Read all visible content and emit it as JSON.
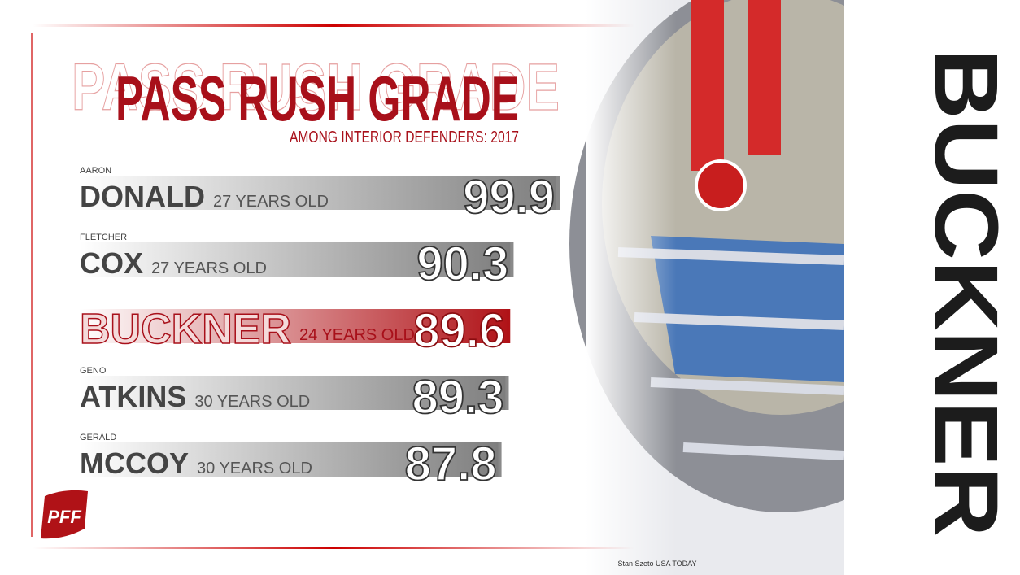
{
  "chart_data": {
    "type": "bar",
    "title": "PASS RUSH GRADE",
    "subtitle": "AMONG INTERIOR DEFENDERS: 2017",
    "first_names": [
      "AARON",
      "FLETCHER",
      null,
      "GENO",
      "GERALD"
    ],
    "categories": [
      "DONALD",
      "COX",
      "BUCKNER",
      "ATKINS",
      "MCCOY"
    ],
    "ages": [
      "27 YEARS OLD",
      "27 YEARS OLD",
      "24 YEARS OLD",
      "30 YEARS OLD",
      "30 YEARS OLD"
    ],
    "values": [
      99.9,
      90.3,
      89.6,
      89.3,
      87.8
    ],
    "colors": [
      "#8a8a8a",
      "#8a8a8a",
      "#b01217",
      "#8a8a8a",
      "#8a8a8a"
    ],
    "highlight": "BUCKNER",
    "side_text": "BUCKNER",
    "logo": "PFF",
    "credit": "Stan Szeto USA TODAY"
  }
}
